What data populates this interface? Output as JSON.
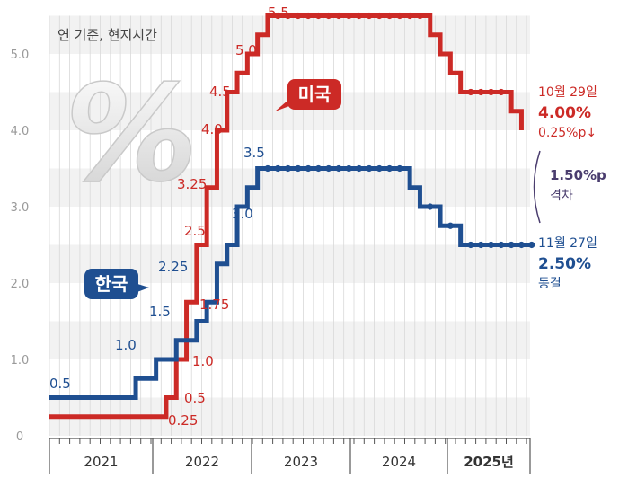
{
  "chart_data": {
    "type": "line",
    "subtitle": "연 기준, 현지시간",
    "big_symbol": "%",
    "ylim": [
      0,
      5.5
    ],
    "yticks": [
      {
        "v": 0,
        "label": "0"
      },
      {
        "v": 1,
        "label": "1.0"
      },
      {
        "v": 2,
        "label": "2.0"
      },
      {
        "v": 3,
        "label": "3.0"
      },
      {
        "v": 4,
        "label": "4.0"
      },
      {
        "v": 5,
        "label": "5.0"
      }
    ],
    "years": [
      "2021",
      "2022",
      "2023",
      "2024",
      "2025년"
    ],
    "colors": {
      "us": "#cc2a26",
      "kr": "#1f4f91",
      "gap": "#4a3d6e",
      "grid": "#d9d9d9",
      "band": "#f2f2f2",
      "axis": "#555555"
    },
    "series": [
      {
        "name": "미국",
        "key": "us",
        "t": [
          0,
          11.5,
          12.5,
          13.5,
          14.5,
          15.5,
          16.5,
          17.5,
          18.5,
          19.5,
          20.5,
          21.5,
          22.5,
          23.5,
          24.5,
          25.5,
          26.5,
          27.5,
          28.5,
          29.5,
          30.5,
          31.5,
          32.5,
          33.5,
          34.5,
          35.5,
          36.5,
          37.5,
          38.5,
          39.5,
          40.5,
          41.5,
          42.5,
          43.5,
          44.5,
          45.5,
          46.5
        ],
        "values": [
          0.25,
          0.5,
          1.0,
          1.75,
          2.5,
          3.25,
          4.0,
          4.5,
          4.75,
          5.0,
          5.25,
          5.5,
          5.5,
          5.5,
          5.5,
          5.5,
          5.5,
          5.5,
          5.5,
          5.5,
          5.5,
          5.5,
          5.5,
          5.5,
          5.5,
          5.5,
          5.5,
          5.25,
          5.0,
          4.75,
          4.5,
          4.5,
          4.5,
          4.5,
          4.5,
          4.25,
          4.0
        ]
      },
      {
        "name": "한국",
        "key": "kr",
        "t": [
          0,
          8.5,
          10.5,
          12.5,
          14.5,
          15.5,
          16.5,
          17.5,
          18.5,
          19.5,
          20.5,
          21.5,
          22.5,
          23.5,
          24.5,
          25.5,
          26.5,
          27.5,
          28.5,
          29.5,
          30.5,
          31.5,
          32.5,
          33.5,
          34.5,
          35.5,
          36.5,
          37.5,
          38.5,
          39.5,
          40.5,
          41.5,
          42.5,
          43.5,
          44.5,
          45.5,
          46.5,
          47.5
        ],
        "values": [
          0.5,
          0.75,
          1.0,
          1.25,
          1.5,
          1.75,
          2.25,
          2.5,
          3.0,
          3.25,
          3.5,
          3.5,
          3.5,
          3.5,
          3.5,
          3.5,
          3.5,
          3.5,
          3.5,
          3.5,
          3.5,
          3.5,
          3.5,
          3.5,
          3.5,
          3.25,
          3.0,
          3.0,
          2.75,
          2.75,
          2.5,
          2.5,
          2.5,
          2.5,
          2.5,
          2.5,
          2.5,
          2.5
        ]
      }
    ],
    "us_labels": [
      "0.25",
      "0.5",
      "1.0",
      "1.75",
      "2.5",
      "3.25",
      "4.0",
      "4.5",
      "5.0",
      "5.5"
    ],
    "kr_labels": [
      "0.5",
      "1.0",
      "1.5",
      "2.25",
      "3.0",
      "3.5"
    ],
    "annotations": {
      "us_badge": "미국",
      "kr_badge": "한국",
      "us_date": "10월 29일",
      "us_rate": "4.00%",
      "us_change": "0.25%p↓",
      "gap_value": "1.50%p",
      "gap_word": "격차",
      "kr_date": "11월 27일",
      "kr_rate": "2.50%",
      "kr_status": "동결"
    }
  }
}
